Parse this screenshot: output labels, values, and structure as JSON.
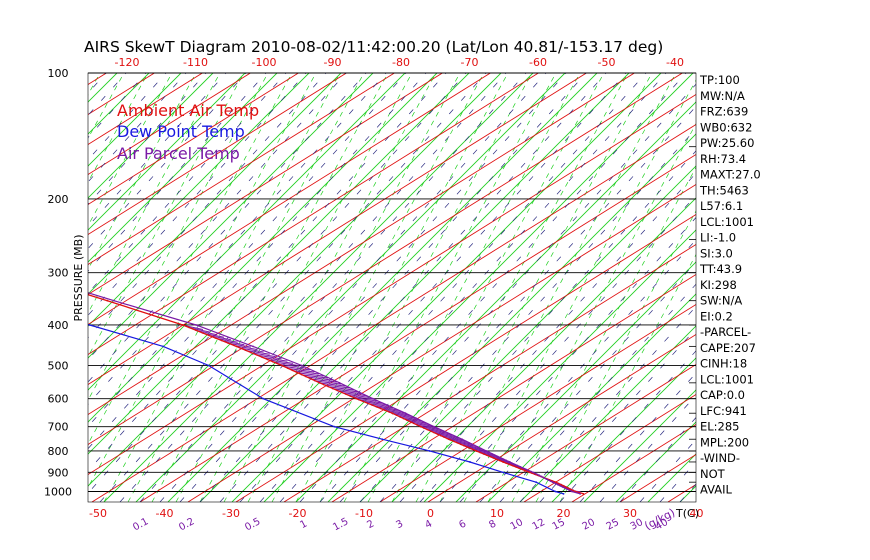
{
  "chart_data": {
    "type": "line",
    "title": "AIRS SkewT Diagram 2010-08-02/11:42:00.20 (Lat/Lon 40.81/-153.17 deg)",
    "ylabel": "PRESSURE (MB)",
    "xlabel_bottom": "T(C)",
    "mixing_ratio_label": "(g/kg)",
    "top_temperature_ticks": [
      -120,
      -110,
      -100,
      -90,
      -80,
      -70,
      -60,
      -50,
      -40
    ],
    "bottom_temperature_ticks": [
      -50,
      -40,
      -30,
      -20,
      -10,
      0,
      10,
      20,
      30,
      40
    ],
    "pressure_ticks": [
      100,
      200,
      300,
      400,
      500,
      600,
      700,
      800,
      900,
      1000
    ],
    "mixing_ratio_ticks": [
      "0.1",
      "0.2",
      "0.5",
      "1",
      "1.5",
      "2",
      "3",
      "4",
      "6",
      "8",
      "10",
      "12",
      "15",
      "20",
      "25",
      "30",
      "40"
    ],
    "legend": [
      {
        "name": "Ambient Air Temp",
        "color": "#e01010"
      },
      {
        "name": "Dew Point Temp",
        "color": "#1818e0"
      },
      {
        "name": "Air Parcel Temp",
        "color": "#7a1aa6"
      }
    ],
    "colors": {
      "isotherm": "#e01010",
      "dry_adiabat": "#22d022",
      "moist_adiabat": "#22d022",
      "mixing_ratio": "#2a2a80",
      "cape_hatch": "#7a1aa6",
      "grid": "#000000"
    },
    "series": [
      {
        "name": "Ambient Air Temp",
        "color": "#e01010",
        "points": [
          [
            100,
            -52
          ],
          [
            120,
            -60
          ],
          [
            150,
            -69
          ],
          [
            180,
            -75
          ],
          [
            200,
            -71
          ],
          [
            250,
            -53
          ],
          [
            300,
            -41
          ],
          [
            350,
            -30
          ],
          [
            400,
            -21
          ],
          [
            450,
            -15
          ],
          [
            500,
            -10
          ],
          [
            550,
            -6
          ],
          [
            600,
            -2
          ],
          [
            650,
            2
          ],
          [
            700,
            5
          ],
          [
            750,
            8
          ],
          [
            800,
            11
          ],
          [
            850,
            14
          ],
          [
            900,
            17
          ],
          [
            950,
            20
          ],
          [
            1000,
            22
          ],
          [
            1013,
            23
          ]
        ]
      },
      {
        "name": "Dew Point Temp",
        "color": "#1818e0",
        "points": [
          [
            100,
            -85
          ],
          [
            150,
            -90
          ],
          [
            200,
            -85
          ],
          [
            250,
            -79
          ],
          [
            300,
            -66
          ],
          [
            350,
            -50
          ],
          [
            400,
            -35
          ],
          [
            450,
            -26
          ],
          [
            500,
            -21
          ],
          [
            600,
            -16
          ],
          [
            700,
            -8
          ],
          [
            750,
            -2
          ],
          [
            800,
            4
          ],
          [
            850,
            9
          ],
          [
            900,
            13
          ],
          [
            950,
            17
          ],
          [
            1000,
            19
          ],
          [
            1013,
            20
          ]
        ]
      },
      {
        "name": "Air Parcel Temp",
        "color": "#7a1aa6",
        "points": [
          [
            100,
            -103
          ],
          [
            150,
            -88
          ],
          [
            200,
            -70
          ],
          [
            250,
            -53
          ],
          [
            300,
            -40
          ],
          [
            350,
            -29
          ],
          [
            400,
            -19
          ],
          [
            450,
            -12.5
          ],
          [
            500,
            -7
          ],
          [
            550,
            -3
          ],
          [
            600,
            0.5
          ],
          [
            650,
            4
          ],
          [
            700,
            7
          ],
          [
            750,
            10
          ],
          [
            800,
            12.5
          ],
          [
            850,
            15
          ],
          [
            900,
            17.5
          ],
          [
            950,
            19.5
          ],
          [
            1000,
            21.5
          ],
          [
            1013,
            22.5
          ]
        ]
      }
    ],
    "cape_region": {
      "from_mb": 400,
      "to_mb": 1000
    },
    "indices": [
      "TP:100",
      "MW:N/A",
      "FRZ:639",
      "WB0:632",
      "PW:25.60",
      "RH:73.4",
      "MAXT:27.0",
      "TH:5463",
      "L57:6.1",
      "LCL:1001",
      "LI:-1.0",
      "SI:3.0",
      "TT:43.9",
      "KI:298",
      "SW:N/A",
      "EI:0.2",
      "-PARCEL-",
      "CAPE:207",
      "CINH:18",
      "LCL:1001",
      "CAP:0.0",
      "LFC:941",
      "EL:285",
      "MPL:200",
      "-WIND-",
      "NOT",
      "AVAIL"
    ]
  }
}
